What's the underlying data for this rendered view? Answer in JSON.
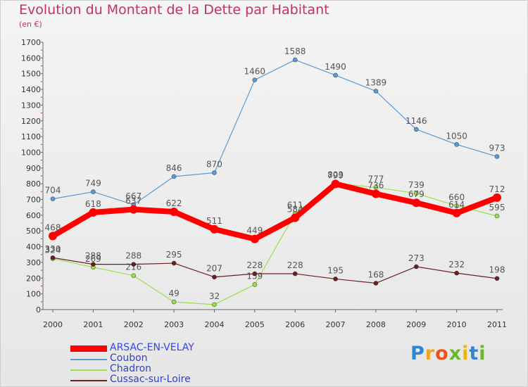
{
  "title": "Evolution du Montant de la Dette par Habitant",
  "subtitle": "(en €)",
  "logo": "Proxiti",
  "chart_data": {
    "type": "line",
    "title": "Evolution du Montant de la Dette par Habitant",
    "subtitle": "(en €)",
    "ylim": [
      0,
      1700
    ],
    "yticks": [
      0,
      100,
      200,
      300,
      400,
      500,
      600,
      700,
      800,
      900,
      1000,
      1100,
      1200,
      1300,
      1400,
      1500,
      1600,
      1700
    ],
    "categories": [
      "2000",
      "2001",
      "2002",
      "2003",
      "2004",
      "2005",
      "2006",
      "2007",
      "2008",
      "2009",
      "2010",
      "2011"
    ],
    "grid": false,
    "legend": "bottom-left",
    "series": [
      {
        "name": "Coubon",
        "color": "#5b9bd5",
        "values": [
          704,
          749,
          667,
          846,
          870,
          1460,
          1588,
          1490,
          1389,
          1146,
          1050,
          973
        ]
      },
      {
        "name": "Chadron",
        "color": "#9be04a",
        "values": [
          324,
          269,
          216,
          49,
          32,
          159,
          611,
          803,
          777,
          739,
          660,
          595
        ]
      },
      {
        "name": "Cussac-sur-Loire",
        "color": "#6b1f22",
        "values": [
          330,
          288,
          288,
          295,
          207,
          228,
          228,
          195,
          168,
          273,
          232,
          198
        ]
      },
      {
        "name": "ARSAC-EN-VELAY",
        "color": "#ff0000",
        "values": [
          468,
          618,
          637,
          622,
          511,
          449,
          584,
          799,
          736,
          679,
          614,
          712
        ]
      }
    ],
    "legend_order": [
      "ARSAC-EN-VELAY",
      "Coubon",
      "Chadron",
      "Cussac-sur-Loire"
    ]
  }
}
